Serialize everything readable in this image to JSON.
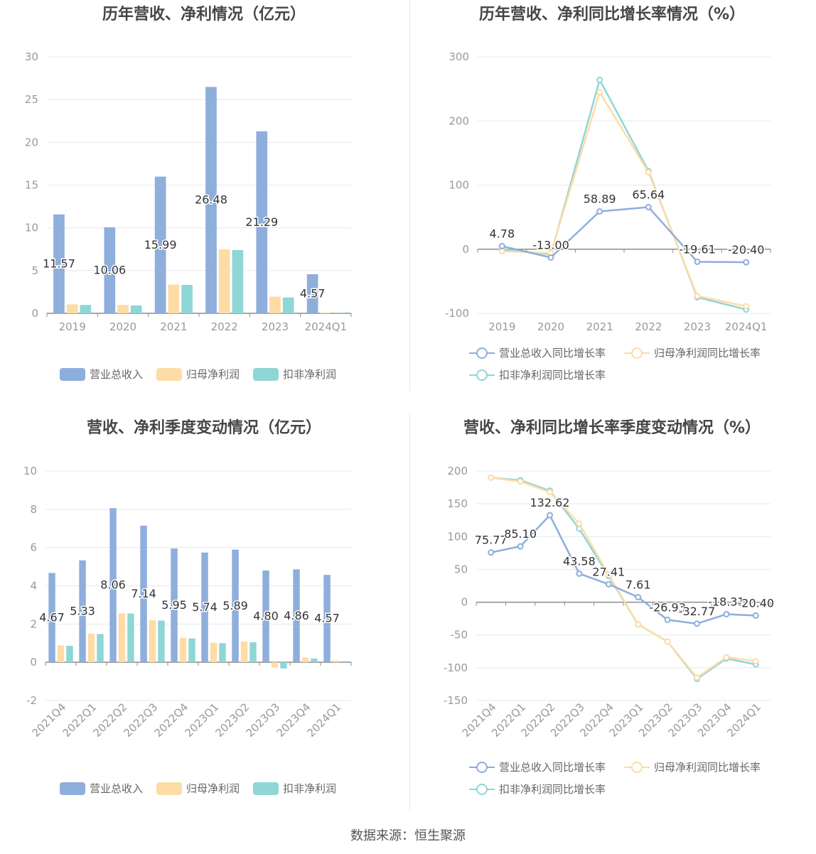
{
  "source_text": "数据来源：恒生聚源",
  "colors": {
    "revenue": "#8eaedc",
    "net_profit": "#fedca6",
    "deducted_profit": "#8fd6d6",
    "axis": "#999999",
    "grid": "#e4e8f0"
  },
  "chart_data": [
    {
      "id": "annual_amount",
      "type": "bar",
      "title": "历年营收、净利情况（亿元）",
      "categories": [
        "2019",
        "2020",
        "2021",
        "2022",
        "2023",
        "2024Q1"
      ],
      "ylim": [
        0,
        30
      ],
      "yticks": [
        0,
        5,
        10,
        15,
        20,
        25,
        30
      ],
      "series": [
        {
          "name": "营业总收入",
          "values": [
            11.57,
            10.06,
            15.99,
            26.48,
            21.29,
            4.57
          ],
          "labels": [
            "11.57",
            "10.06",
            "15.99",
            "26.48",
            "21.29",
            "4.57"
          ]
        },
        {
          "name": "归母净利润",
          "values": [
            1.05,
            0.98,
            3.37,
            7.5,
            1.95,
            0.08
          ]
        },
        {
          "name": "扣非净利润",
          "values": [
            0.98,
            0.92,
            3.32,
            7.4,
            1.85,
            0.07
          ]
        }
      ],
      "legend": "bottom"
    },
    {
      "id": "annual_growth",
      "type": "line",
      "title": "历年营收、净利同比增长率情况（%）",
      "categories": [
        "2019",
        "2020",
        "2021",
        "2022",
        "2023",
        "2024Q1"
      ],
      "ylim": [
        -100,
        300
      ],
      "yticks": [
        -100,
        0,
        100,
        200,
        300
      ],
      "series": [
        {
          "name": "营业总收入同比增长率",
          "values": [
            4.78,
            -13.0,
            58.89,
            65.64,
            -19.61,
            -20.4
          ],
          "labels": [
            "4.78",
            "-13.00",
            "58.89",
            "65.64",
            "-19.61",
            "-20.40"
          ]
        },
        {
          "name": "归母净利润同比增长率",
          "values": [
            -3,
            -6,
            245,
            120,
            -73,
            -89
          ]
        },
        {
          "name": "扣非净利润同比增长率",
          "values": [
            0,
            -8,
            264,
            122,
            -75,
            -94
          ]
        }
      ],
      "legend": "bottom"
    },
    {
      "id": "quarterly_amount",
      "type": "bar",
      "title": "营收、净利季度变动情况（亿元）",
      "categories": [
        "2021Q4",
        "2022Q1",
        "2022Q2",
        "2022Q3",
        "2022Q4",
        "2023Q1",
        "2023Q2",
        "2023Q3",
        "2023Q4",
        "2024Q1"
      ],
      "ylim": [
        -2,
        10
      ],
      "yticks": [
        -2,
        0,
        2,
        4,
        6,
        8,
        10
      ],
      "series": [
        {
          "name": "营业总收入",
          "values": [
            4.67,
            5.33,
            8.06,
            7.14,
            5.95,
            5.74,
            5.89,
            4.8,
            4.86,
            4.57
          ],
          "labels": [
            "4.67",
            "5.33",
            "8.06",
            "7.14",
            "5.95",
            "5.74",
            "5.89",
            "4.80",
            "4.86",
            "4.57"
          ]
        },
        {
          "name": "归母净利润",
          "values": [
            0.88,
            1.5,
            2.55,
            2.2,
            1.28,
            1.02,
            1.08,
            -0.27,
            0.25,
            0.1
          ]
        },
        {
          "name": "扣非净利润",
          "values": [
            0.86,
            1.48,
            2.55,
            2.18,
            1.25,
            1.0,
            1.05,
            -0.32,
            0.2,
            0.06
          ]
        }
      ],
      "legend": "bottom"
    },
    {
      "id": "quarterly_growth",
      "type": "line",
      "title": "营收、净利同比增长率季度变动情况（%）",
      "categories": [
        "2021Q4",
        "2022Q1",
        "2022Q2",
        "2022Q3",
        "2022Q4",
        "2023Q1",
        "2023Q2",
        "2023Q3",
        "2023Q4",
        "2024Q1"
      ],
      "ylim": [
        -150,
        200
      ],
      "yticks": [
        -150,
        -100,
        -50,
        0,
        50,
        100,
        150,
        200
      ],
      "series": [
        {
          "name": "营业总收入同比增长率",
          "values": [
            75.77,
            85.1,
            132.62,
            43.58,
            27.41,
            7.61,
            -26.93,
            -32.77,
            -18.31,
            -20.4
          ],
          "labels": [
            "75.77",
            "85.10",
            "132.62",
            "43.58",
            "27.41",
            "7.61",
            "-26.93",
            "-32.77",
            "-18.31",
            "-20.40"
          ]
        },
        {
          "name": "归母净利润同比增长率",
          "values": [
            190,
            184,
            168,
            120,
            42,
            -34,
            -60,
            -115,
            -84,
            -90
          ]
        },
        {
          "name": "扣非净利润同比增长率",
          "values": [
            190,
            186,
            170,
            112,
            40,
            -34,
            -60,
            -117,
            -86,
            -95
          ]
        }
      ],
      "legend": "bottom"
    }
  ]
}
